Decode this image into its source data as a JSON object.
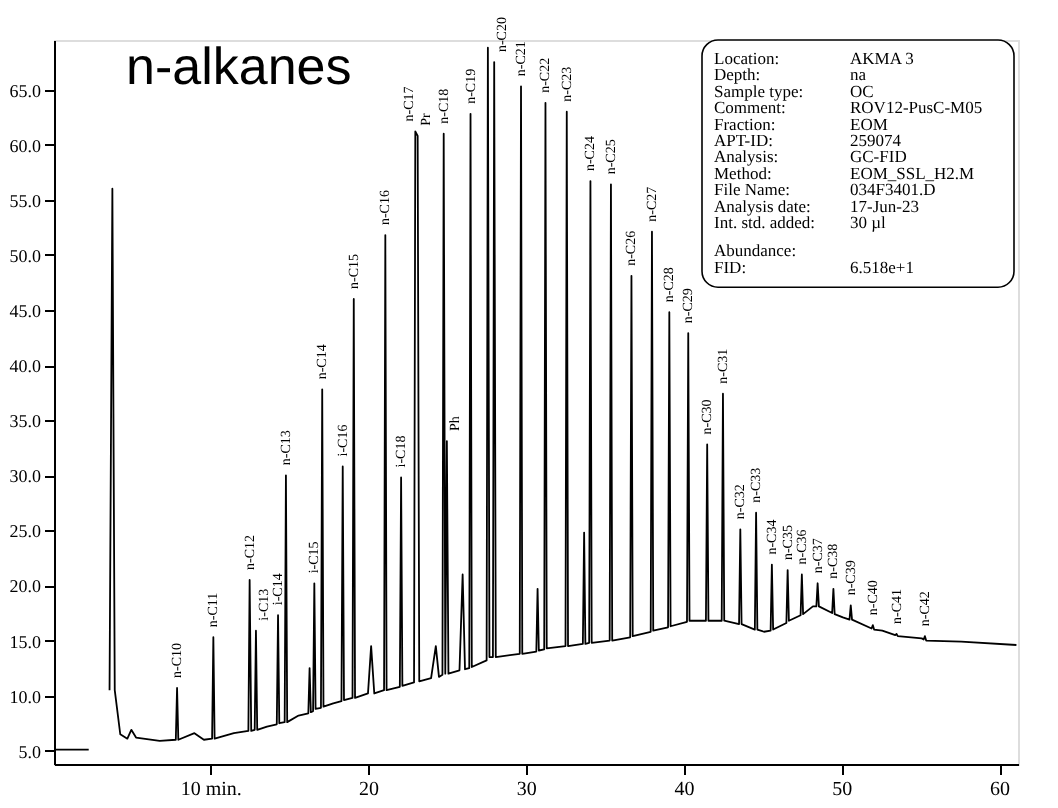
{
  "chart_data": {
    "type": "line",
    "title": "n-alkanes",
    "xlim": [
      0.1,
      61.2
    ],
    "ylim": [
      3.8,
      69.5
    ],
    "xticks": [
      {
        "value": 10,
        "label": "10 min."
      },
      20,
      30,
      40,
      50,
      60
    ],
    "yticks": [
      {
        "value": 5,
        "label": "5.0"
      },
      {
        "value": 10,
        "label": "10.0"
      },
      {
        "value": 15,
        "label": "15.0"
      },
      {
        "value": 20,
        "label": "20.0"
      },
      {
        "value": 25,
        "label": "25.0"
      },
      {
        "value": 30,
        "label": "30.0"
      },
      {
        "value": 35,
        "label": "35.0"
      },
      {
        "value": 40,
        "label": "40.0"
      },
      {
        "value": 45,
        "label": "45.0"
      },
      {
        "value": 50,
        "label": "50.0"
      },
      {
        "value": 55,
        "label": "55.0"
      },
      {
        "value": 60,
        "label": "60.0"
      },
      {
        "value": 65,
        "label": "65.0"
      }
    ],
    "series": [
      {
        "color": "#000000",
        "x": [
          0.2,
          2.3,
          2.35,
          3.6,
          3.62,
          3.8,
          3.95,
          4.3,
          4.75,
          5.0,
          5.3,
          6.8,
          7.82,
          7.9,
          7.98,
          9.0,
          9.6,
          10.12,
          10.2,
          10.28,
          11.5,
          12.42,
          12.5,
          12.6,
          12.82,
          12.9,
          12.98,
          13.6,
          14.22,
          14.3,
          14.38,
          14.72,
          14.8,
          14.88,
          15.6,
          16.22,
          16.3,
          16.38,
          16.52,
          16.6,
          16.68,
          17.02,
          17.1,
          17.18,
          17.8,
          18.32,
          18.4,
          18.48,
          19.02,
          19.1,
          19.18,
          20.0,
          20.2,
          20.4,
          21.02,
          21.1,
          21.18,
          22.02,
          22.1,
          22.18,
          22.92,
          23.0,
          23.15,
          23.25,
          24.0,
          24.3,
          24.5,
          24.72,
          24.8,
          24.9,
          25.0,
          25.1,
          25.8,
          26.0,
          26.15,
          26.42,
          26.5,
          26.58,
          27.52,
          27.6,
          27.7,
          27.92,
          28.0,
          28.1,
          29.62,
          29.7,
          29.78,
          30.67,
          30.75,
          30.83,
          31.17,
          31.25,
          31.33,
          32.52,
          32.6,
          32.68,
          33.62,
          33.7,
          33.78,
          34.02,
          34.1,
          34.18,
          35.32,
          35.4,
          35.48,
          36.62,
          36.7,
          36.78,
          37.92,
          38.0,
          38.08,
          39.02,
          39.1,
          39.18,
          40.22,
          40.3,
          40.38,
          41.42,
          41.5,
          41.58,
          42.42,
          42.5,
          42.58,
          43.52,
          43.6,
          43.68,
          44.52,
          44.6,
          44.68,
          45.1,
          45.52,
          45.6,
          45.68,
          46.52,
          46.6,
          46.68,
          47.42,
          47.5,
          47.58,
          48.2,
          48.42,
          48.5,
          48.58,
          49.42,
          49.5,
          49.58,
          50.1,
          50.52,
          50.6,
          50.68,
          51.92,
          52.0,
          52.08,
          52.6,
          53.42,
          53.5,
          53.58,
          55.1,
          55.22,
          55.3,
          55.38,
          57.6,
          61.1
        ],
        "values": [
          5.1,
          5.1,
          null,
          null,
          10.5,
          56.0,
          10.5,
          6.5,
          6.1,
          6.9,
          6.2,
          5.9,
          6.0,
          10.7,
          6.0,
          6.6,
          6.0,
          6.1,
          15.3,
          6.1,
          6.6,
          6.8,
          20.5,
          6.8,
          6.9,
          15.9,
          6.9,
          7.2,
          7.4,
          17.3,
          7.5,
          7.6,
          30.0,
          7.6,
          8.2,
          8.4,
          12.5,
          8.5,
          8.6,
          20.2,
          8.8,
          8.9,
          37.8,
          9.0,
          9.3,
          9.5,
          30.8,
          9.6,
          9.8,
          46.0,
          9.8,
          10.2,
          14.5,
          10.2,
          10.5,
          51.8,
          10.5,
          10.8,
          29.8,
          10.9,
          11.2,
          61.2,
          60.8,
          11.3,
          11.6,
          14.5,
          11.7,
          11.9,
          61.0,
          12.0,
          33.1,
          12.0,
          12.3,
          21.0,
          12.4,
          12.5,
          62.8,
          12.6,
          13.2,
          68.8,
          13.5,
          13.5,
          67.5,
          13.5,
          13.8,
          65.3,
          13.8,
          14.0,
          19.7,
          14.1,
          14.2,
          63.8,
          14.3,
          14.5,
          63.0,
          14.5,
          14.7,
          24.8,
          14.7,
          14.8,
          56.7,
          14.8,
          15.0,
          56.4,
          15.0,
          15.3,
          48.1,
          15.4,
          15.8,
          52.1,
          15.9,
          16.2,
          44.8,
          16.3,
          16.7,
          42.9,
          16.8,
          16.8,
          32.8,
          16.8,
          16.8,
          37.4,
          16.8,
          16.5,
          25.1,
          16.5,
          16.0,
          26.6,
          16.0,
          15.8,
          15.9,
          21.9,
          16.0,
          16.6,
          21.4,
          16.8,
          17.3,
          21.0,
          17.4,
          18.1,
          18.1,
          20.2,
          18.1,
          17.5,
          19.7,
          17.4,
          17.1,
          16.9,
          18.2,
          16.9,
          16.1,
          16.4,
          16.0,
          15.9,
          15.5,
          15.6,
          15.4,
          15.2,
          15.1,
          15.4,
          15.0,
          14.9,
          14.6
        ]
      }
    ],
    "annotations": [
      {
        "text": "n-C10",
        "x": 7.9,
        "y": 10.7
      },
      {
        "text": "n-C11",
        "x": 10.2,
        "y": 15.3
      },
      {
        "text": "n-C12",
        "x": 12.5,
        "y": 20.5
      },
      {
        "text": "i-C13",
        "x": 12.9,
        "y": 15.9
      },
      {
        "text": "i-C14",
        "x": 14.3,
        "y": 17.3
      },
      {
        "text": "n-C13",
        "x": 14.8,
        "y": 30.0
      },
      {
        "text": "i-C15",
        "x": 16.6,
        "y": 20.2
      },
      {
        "text": "n-C14",
        "x": 17.1,
        "y": 37.8
      },
      {
        "text": "i-C16",
        "x": 18.4,
        "y": 30.8
      },
      {
        "text": "n-C15",
        "x": 19.1,
        "y": 46.0
      },
      {
        "text": "n-C16",
        "x": 21.1,
        "y": 51.8
      },
      {
        "text": "i-C18",
        "x": 22.1,
        "y": 29.8
      },
      {
        "text": "n-C17",
        "x": 23.0,
        "y": 61.2
      },
      {
        "text": "Pr",
        "x": 23.15,
        "y": 60.8
      },
      {
        "text": "n-C18",
        "x": 24.8,
        "y": 61.0
      },
      {
        "text": "Ph",
        "x": 25.0,
        "y": 33.1
      },
      {
        "text": "n-C19",
        "x": 26.5,
        "y": 62.8
      },
      {
        "text": "n-C20",
        "x": 28.0,
        "y": 67.5
      },
      {
        "text": "n-C21",
        "x": 29.7,
        "y": 65.3
      },
      {
        "text": "n-C22",
        "x": 31.25,
        "y": 63.8
      },
      {
        "text": "n-C23",
        "x": 32.6,
        "y": 63.0
      },
      {
        "text": "n-C24",
        "x": 34.1,
        "y": 56.7
      },
      {
        "text": "n-C25",
        "x": 35.4,
        "y": 56.4
      },
      {
        "text": "n-C26",
        "x": 36.7,
        "y": 48.1
      },
      {
        "text": "n-C27",
        "x": 38.0,
        "y": 52.1
      },
      {
        "text": "n-C28",
        "x": 39.1,
        "y": 44.8
      },
      {
        "text": "n-C29",
        "x": 40.3,
        "y": 42.9
      },
      {
        "text": "n-C30",
        "x": 41.5,
        "y": 32.8
      },
      {
        "text": "n-C31",
        "x": 42.5,
        "y": 37.4
      },
      {
        "text": "n-C32",
        "x": 43.6,
        "y": 25.1
      },
      {
        "text": "n-C33",
        "x": 44.6,
        "y": 26.6
      },
      {
        "text": "n-C34",
        "x": 45.6,
        "y": 21.9
      },
      {
        "text": "n-C35",
        "x": 46.6,
        "y": 21.4
      },
      {
        "text": "n-C36",
        "x": 47.5,
        "y": 21.0
      },
      {
        "text": "n-C37",
        "x": 48.5,
        "y": 20.2
      },
      {
        "text": "n-C38",
        "x": 49.5,
        "y": 19.7
      },
      {
        "text": "n-C39",
        "x": 50.6,
        "y": 18.2
      },
      {
        "text": "n-C40",
        "x": 52.0,
        "y": 16.4
      },
      {
        "text": "n-C41",
        "x": 53.5,
        "y": 15.6
      },
      {
        "text": "n-C42",
        "x": 55.3,
        "y": 15.4
      },
      "Location: AKMA 3",
      "Depth: na",
      "Sample type: OC",
      "Comment: ROV12-PusC-M05",
      "Fraction: EOM",
      "APT-ID: 259074",
      "Analysis: GC-FID",
      "Method: EOM_SSL_H2.M",
      "File Name: 034F3401.D",
      "Analysis date: 17-Jun-23",
      "Int. std. added: 30 µl",
      "Abundance:",
      "FID: 6.518e+1"
    ]
  }
}
